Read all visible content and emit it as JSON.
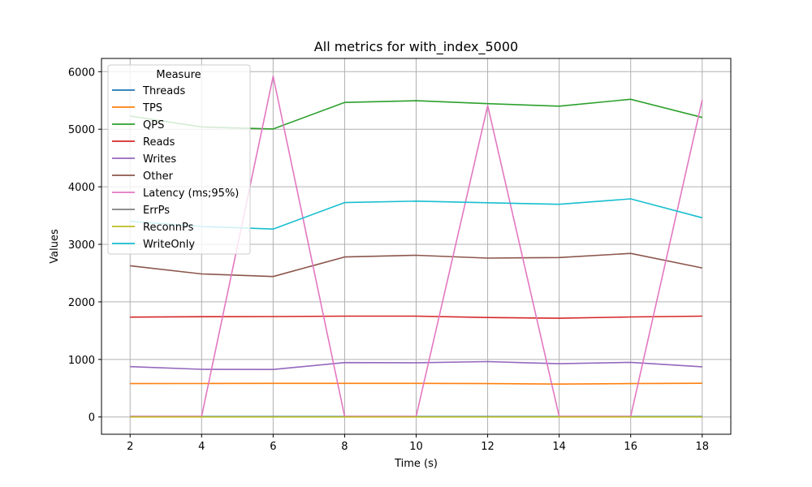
{
  "chart_data": {
    "type": "line",
    "title": "All metrics for with_index_5000",
    "xlabel": "Time (s)",
    "ylabel": "Values",
    "x": [
      2,
      4,
      6,
      8,
      10,
      12,
      14,
      16,
      18
    ],
    "xlim": [
      1.2,
      18.8
    ],
    "ylim": [
      -300,
      6230
    ],
    "xticks": [
      2,
      4,
      6,
      8,
      10,
      12,
      14,
      16,
      18
    ],
    "yticks": [
      0,
      1000,
      2000,
      3000,
      4000,
      5000,
      6000
    ],
    "grid": true,
    "legend": {
      "title": "Measure",
      "position": "top-left"
    },
    "series": [
      {
        "name": "Threads",
        "color": "#1f77b4",
        "values": [
          8,
          8,
          8,
          8,
          8,
          8,
          8,
          8,
          8
        ]
      },
      {
        "name": "TPS",
        "color": "#ff7f0e",
        "values": [
          580,
          582,
          585,
          585,
          584,
          580,
          572,
          580,
          586
        ]
      },
      {
        "name": "QPS",
        "color": "#2ca02c",
        "values": [
          5230,
          5040,
          5005,
          5465,
          5495,
          5445,
          5400,
          5520,
          5205
        ]
      },
      {
        "name": "Reads",
        "color": "#d62728",
        "values": [
          1735,
          1742,
          1745,
          1752,
          1752,
          1728,
          1715,
          1738,
          1752
        ]
      },
      {
        "name": "Writes",
        "color": "#9467bd",
        "values": [
          875,
          828,
          825,
          945,
          942,
          962,
          925,
          950,
          872
        ]
      },
      {
        "name": "Other",
        "color": "#8c564b",
        "values": [
          2628,
          2485,
          2440,
          2780,
          2810,
          2760,
          2770,
          2842,
          2590
        ]
      },
      {
        "name": "Latency (ms;95%)",
        "color": "#e377c2",
        "values": [
          11,
          11,
          5920,
          11,
          11,
          5410,
          11,
          11,
          5510
        ]
      },
      {
        "name": "ErrPs",
        "color": "#7f7f7f",
        "values": [
          0,
          0,
          0,
          0,
          0,
          0,
          0,
          0,
          0
        ]
      },
      {
        "name": "ReconnPs",
        "color": "#bcbd22",
        "values": [
          0,
          0,
          0,
          0,
          0,
          0,
          0,
          0,
          0
        ]
      },
      {
        "name": "WriteOnly",
        "color": "#17becf",
        "values": [
          3400,
          3310,
          3265,
          3725,
          3750,
          3722,
          3695,
          3790,
          3462
        ]
      }
    ]
  }
}
